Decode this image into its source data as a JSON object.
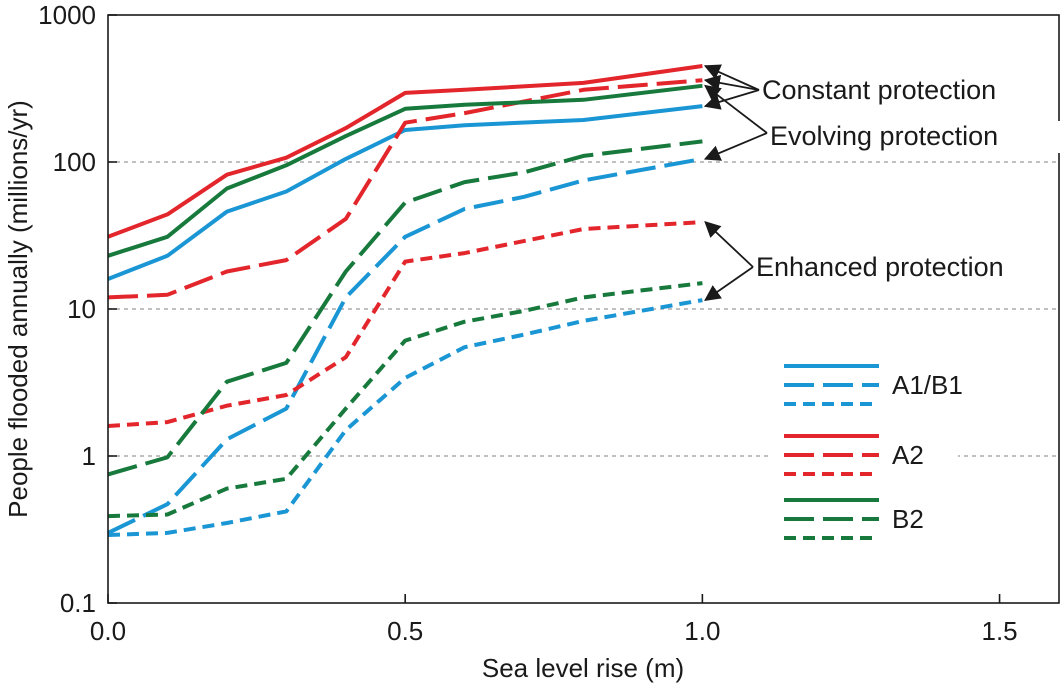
{
  "chart_data": {
    "type": "line",
    "title": "",
    "xlabel": "Sea level rise (m)",
    "ylabel": "People flooded annually (millions/yr)",
    "xlim": [
      0,
      1.6
    ],
    "ylim": [
      0.1,
      1000
    ],
    "yscale": "log",
    "grid": "horizontal dashed at decades",
    "xticks": [
      "0.0",
      "0.5",
      "1.0",
      "1.5"
    ],
    "yticks": [
      "0.1",
      "1",
      "10",
      "100",
      "1000"
    ],
    "colors": {
      "A1/B1": "#1a96d4",
      "A2": "#e3262b",
      "B2": "#177a3c"
    },
    "series": [
      {
        "scenario": "A1/B1",
        "protection": "constant",
        "x": [
          0,
          0.1,
          0.2,
          0.3,
          0.4,
          0.5,
          0.6,
          0.8,
          1.0
        ],
        "y": [
          16,
          23,
          46,
          63,
          105,
          165,
          178,
          193,
          240
        ]
      },
      {
        "scenario": "A1/B1",
        "protection": "evolving",
        "x": [
          0,
          0.1,
          0.2,
          0.3,
          0.4,
          0.5,
          0.6,
          0.7,
          0.8,
          1.0
        ],
        "y": [
          0.3,
          0.47,
          1.3,
          2.1,
          12,
          31,
          48,
          58,
          75,
          105
        ]
      },
      {
        "scenario": "A1/B1",
        "protection": "enhanced",
        "x": [
          0,
          0.1,
          0.2,
          0.3,
          0.4,
          0.5,
          0.6,
          0.7,
          0.8,
          1.0
        ],
        "y": [
          0.29,
          0.3,
          0.35,
          0.42,
          1.5,
          3.4,
          5.5,
          6.7,
          8.3,
          11.5
        ]
      },
      {
        "scenario": "A2",
        "protection": "constant",
        "x": [
          0,
          0.1,
          0.2,
          0.3,
          0.4,
          0.5,
          0.6,
          0.8,
          1.0
        ],
        "y": [
          31,
          44,
          82,
          107,
          170,
          295,
          310,
          345,
          450
        ]
      },
      {
        "scenario": "A2",
        "protection": "evolving",
        "x": [
          0,
          0.1,
          0.2,
          0.3,
          0.4,
          0.5,
          0.6,
          0.8,
          1.0
        ],
        "y": [
          12,
          12.5,
          18,
          21.5,
          41,
          185,
          215,
          310,
          360
        ]
      },
      {
        "scenario": "A2",
        "protection": "enhanced",
        "x": [
          0,
          0.1,
          0.2,
          0.3,
          0.4,
          0.5,
          0.6,
          0.8,
          1.0
        ],
        "y": [
          1.6,
          1.7,
          2.2,
          2.6,
          4.7,
          21,
          24,
          35,
          39
        ]
      },
      {
        "scenario": "B2",
        "protection": "constant",
        "x": [
          0,
          0.1,
          0.2,
          0.3,
          0.4,
          0.5,
          0.6,
          0.8,
          1.0
        ],
        "y": [
          23,
          31,
          66,
          95,
          150,
          230,
          245,
          265,
          330
        ]
      },
      {
        "scenario": "B2",
        "protection": "evolving",
        "x": [
          0,
          0.1,
          0.2,
          0.3,
          0.4,
          0.5,
          0.6,
          0.7,
          0.8,
          1.0
        ],
        "y": [
          0.75,
          0.98,
          3.2,
          4.3,
          18,
          53,
          73,
          85,
          110,
          138
        ]
      },
      {
        "scenario": "B2",
        "protection": "enhanced",
        "x": [
          0,
          0.1,
          0.2,
          0.3,
          0.4,
          0.5,
          0.6,
          0.7,
          0.8,
          1.0
        ],
        "y": [
          0.39,
          0.4,
          0.6,
          0.7,
          2.1,
          6.1,
          8.2,
          9.7,
          12,
          15
        ]
      }
    ],
    "annotations": [
      {
        "text": "Constant protection",
        "targets": [
          {
            "scenario": "A2",
            "protection": "constant"
          },
          {
            "scenario": "A2",
            "protection": "evolving"
          },
          {
            "scenario": "A1/B1",
            "protection": "constant"
          }
        ]
      },
      {
        "text": "Evolving protection",
        "targets": [
          {
            "scenario": "B2",
            "protection": "constant"
          },
          {
            "scenario": "A1/B1",
            "protection": "evolving"
          }
        ]
      },
      {
        "text": "Enhanced protection",
        "targets": [
          {
            "scenario": "A2",
            "protection": "enhanced"
          },
          {
            "scenario": "A1/B1",
            "protection": "enhanced"
          }
        ]
      }
    ],
    "legend": {
      "placement": "lower-right",
      "entries": [
        {
          "label": "A1/B1",
          "scenario": "A1/B1"
        },
        {
          "label": "A2",
          "scenario": "A2"
        },
        {
          "label": "B2",
          "scenario": "B2"
        }
      ],
      "styles": [
        "constant",
        "evolving",
        "enhanced"
      ]
    }
  }
}
